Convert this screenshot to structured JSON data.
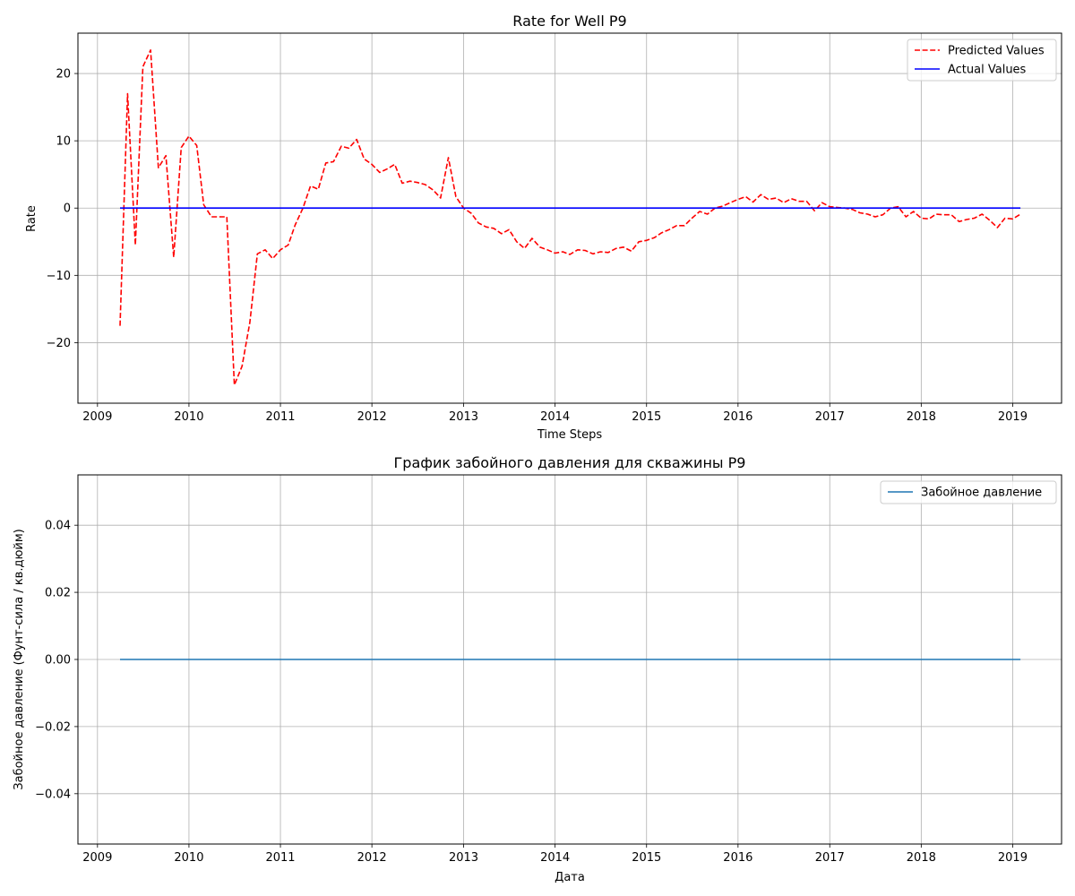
{
  "chart_data": [
    {
      "type": "line",
      "title": "Rate for Well P9",
      "xlabel": "Time Steps",
      "ylabel": "Rate",
      "xlim": [
        "2008-10-15",
        "2019-07-15"
      ],
      "ylim": [
        -29,
        26
      ],
      "x_ticks": [
        "2009",
        "2010",
        "2011",
        "2012",
        "2013",
        "2014",
        "2015",
        "2016",
        "2017",
        "2018",
        "2019"
      ],
      "y_ticks": [
        20,
        10,
        0,
        -10,
        -20
      ],
      "y_tick_labels": [
        "20",
        "10",
        "0",
        "−10",
        "−20"
      ],
      "grid": true,
      "legend": "top-right",
      "series": [
        {
          "name": "Predicted Values",
          "color": "#ff0000",
          "style": "dashed",
          "points": [
            [
              "2009-04-01",
              -17.5
            ],
            [
              "2009-05-01",
              17.0
            ],
            [
              "2009-06-01",
              -5.5
            ],
            [
              "2009-07-01",
              21.0
            ],
            [
              "2009-08-01",
              23.5
            ],
            [
              "2009-09-01",
              6.0
            ],
            [
              "2009-10-01",
              7.8
            ],
            [
              "2009-11-01",
              -7.3
            ],
            [
              "2009-12-01",
              9.0
            ],
            [
              "2010-01-01",
              10.7
            ],
            [
              "2010-02-01",
              9.3
            ],
            [
              "2010-03-01",
              0.5
            ],
            [
              "2010-04-01",
              -1.3
            ],
            [
              "2010-05-01",
              -1.3
            ],
            [
              "2010-06-01",
              -1.3
            ],
            [
              "2010-07-01",
              -26.3
            ],
            [
              "2010-08-01",
              -23.5
            ],
            [
              "2010-09-01",
              -17.0
            ],
            [
              "2010-10-01",
              -6.8
            ],
            [
              "2010-11-01",
              -6.2
            ],
            [
              "2010-12-01",
              -7.5
            ],
            [
              "2011-01-01",
              -6.2
            ],
            [
              "2011-02-01",
              -5.5
            ],
            [
              "2011-03-01",
              -2.5
            ],
            [
              "2011-04-01",
              0.0
            ],
            [
              "2011-05-01",
              3.3
            ],
            [
              "2011-06-01",
              2.8
            ],
            [
              "2011-07-01",
              6.7
            ],
            [
              "2011-08-01",
              6.9
            ],
            [
              "2011-09-01",
              9.2
            ],
            [
              "2011-10-01",
              8.9
            ],
            [
              "2011-11-01",
              10.2
            ],
            [
              "2011-12-01",
              7.3
            ],
            [
              "2012-01-01",
              6.5
            ],
            [
              "2012-02-01",
              5.3
            ],
            [
              "2012-03-01",
              5.8
            ],
            [
              "2012-04-01",
              6.5
            ],
            [
              "2012-05-01",
              3.7
            ],
            [
              "2012-06-01",
              4.0
            ],
            [
              "2012-07-01",
              3.8
            ],
            [
              "2012-08-01",
              3.5
            ],
            [
              "2012-09-01",
              2.7
            ],
            [
              "2012-10-01",
              1.5
            ],
            [
              "2012-11-01",
              7.5
            ],
            [
              "2012-12-01",
              1.7
            ],
            [
              "2013-01-01",
              0.0
            ],
            [
              "2013-02-01",
              -0.8
            ],
            [
              "2013-03-01",
              -2.2
            ],
            [
              "2013-04-01",
              -2.8
            ],
            [
              "2013-05-01",
              -3.0
            ],
            [
              "2013-06-01",
              -3.8
            ],
            [
              "2013-07-01",
              -3.2
            ],
            [
              "2013-08-01",
              -5.0
            ],
            [
              "2013-09-01",
              -6.0
            ],
            [
              "2013-10-01",
              -4.5
            ],
            [
              "2013-11-01",
              -5.8
            ],
            [
              "2013-12-01",
              -6.2
            ],
            [
              "2014-01-01",
              -6.7
            ],
            [
              "2014-02-01",
              -6.5
            ],
            [
              "2014-03-01",
              -6.9
            ],
            [
              "2014-04-01",
              -6.2
            ],
            [
              "2014-05-01",
              -6.3
            ],
            [
              "2014-06-01",
              -6.8
            ],
            [
              "2014-07-01",
              -6.5
            ],
            [
              "2014-08-01",
              -6.6
            ],
            [
              "2014-09-01",
              -6.0
            ],
            [
              "2014-10-01",
              -5.8
            ],
            [
              "2014-11-01",
              -6.4
            ],
            [
              "2014-12-01",
              -5.0
            ],
            [
              "2015-01-01",
              -4.8
            ],
            [
              "2015-02-01",
              -4.4
            ],
            [
              "2015-03-01",
              -3.7
            ],
            [
              "2015-04-01",
              -3.2
            ],
            [
              "2015-05-01",
              -2.6
            ],
            [
              "2015-06-01",
              -2.6
            ],
            [
              "2015-07-01",
              -1.5
            ],
            [
              "2015-08-01",
              -0.5
            ],
            [
              "2015-09-01",
              -0.9
            ],
            [
              "2015-10-01",
              0.0
            ],
            [
              "2015-11-01",
              0.3
            ],
            [
              "2015-12-01",
              0.8
            ],
            [
              "2016-01-01",
              1.3
            ],
            [
              "2016-02-01",
              1.7
            ],
            [
              "2016-03-01",
              0.9
            ],
            [
              "2016-04-01",
              2.0
            ],
            [
              "2016-05-01",
              1.3
            ],
            [
              "2016-06-01",
              1.5
            ],
            [
              "2016-07-01",
              0.8
            ],
            [
              "2016-08-01",
              1.4
            ],
            [
              "2016-09-01",
              1.0
            ],
            [
              "2016-10-01",
              1.0
            ],
            [
              "2016-11-01",
              -0.4
            ],
            [
              "2016-12-01",
              0.8
            ],
            [
              "2017-01-01",
              0.2
            ],
            [
              "2017-02-01",
              0.1
            ],
            [
              "2017-03-01",
              0.0
            ],
            [
              "2017-04-01",
              -0.2
            ],
            [
              "2017-05-01",
              -0.7
            ],
            [
              "2017-06-01",
              -0.9
            ],
            [
              "2017-07-01",
              -1.3
            ],
            [
              "2017-08-01",
              -1.0
            ],
            [
              "2017-09-01",
              0.0
            ],
            [
              "2017-10-01",
              0.2
            ],
            [
              "2017-11-01",
              -1.3
            ],
            [
              "2017-12-01",
              -0.5
            ],
            [
              "2018-01-01",
              -1.5
            ],
            [
              "2018-02-01",
              -1.6
            ],
            [
              "2018-03-01",
              -0.9
            ],
            [
              "2018-04-01",
              -1.0
            ],
            [
              "2018-05-01",
              -1.0
            ],
            [
              "2018-06-01",
              -2.0
            ],
            [
              "2018-07-01",
              -1.7
            ],
            [
              "2018-08-01",
              -1.5
            ],
            [
              "2018-09-01",
              -0.9
            ],
            [
              "2018-10-01",
              -1.8
            ],
            [
              "2018-11-01",
              -2.9
            ],
            [
              "2018-12-01",
              -1.5
            ],
            [
              "2019-01-01",
              -1.6
            ],
            [
              "2019-02-01",
              -0.9
            ]
          ]
        },
        {
          "name": "Actual Values",
          "color": "#0000ff",
          "style": "solid",
          "points": [
            [
              "2009-04-01",
              0
            ],
            [
              "2019-02-01",
              0
            ]
          ]
        }
      ]
    },
    {
      "type": "line",
      "title": "График забойного давления для скважины P9",
      "xlabel": "Дата",
      "ylabel": "Забойное давление (Фунт-сила / кв.дюйм)",
      "xlim": [
        "2008-10-15",
        "2019-07-15"
      ],
      "ylim": [
        -0.055,
        0.055
      ],
      "x_ticks": [
        "2009",
        "2010",
        "2011",
        "2012",
        "2013",
        "2014",
        "2015",
        "2016",
        "2017",
        "2018",
        "2019"
      ],
      "y_ticks": [
        0.04,
        0.02,
        0.0,
        -0.02,
        -0.04
      ],
      "y_tick_labels": [
        "0.04",
        "0.02",
        "0.00",
        "−0.02",
        "−0.04"
      ],
      "grid": true,
      "legend": "top-right",
      "series": [
        {
          "name": "Забойное давление",
          "color": "#1f77b4",
          "style": "solid",
          "points": [
            [
              "2009-04-01",
              0
            ],
            [
              "2019-02-01",
              0
            ]
          ]
        }
      ]
    }
  ]
}
